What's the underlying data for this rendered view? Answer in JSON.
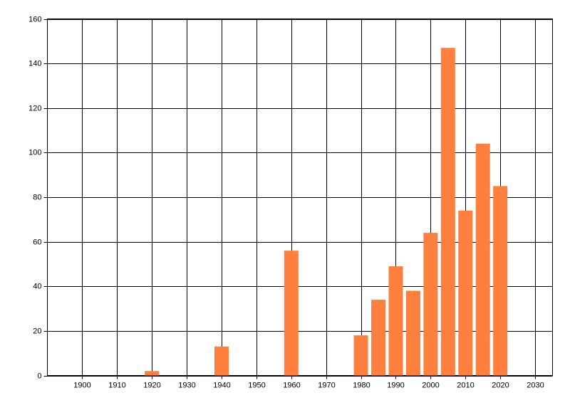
{
  "chart_data": {
    "type": "bar",
    "x": [
      1920,
      1940,
      1960,
      1980,
      1985,
      1990,
      1995,
      2000,
      2005,
      2010,
      2015,
      2020
    ],
    "values": [
      2,
      13,
      56,
      18,
      34,
      49,
      38,
      64,
      147,
      74,
      104,
      85
    ],
    "color": "#ff7f3f",
    "xlim": [
      1890,
      2035
    ],
    "xticks": [
      1900,
      1910,
      1920,
      1930,
      1940,
      1950,
      1960,
      1970,
      1980,
      1990,
      2000,
      2010,
      2020,
      2030
    ],
    "ylim": [
      0,
      160
    ],
    "yticks": [
      0,
      20,
      40,
      60,
      80,
      100,
      120,
      140,
      160
    ],
    "grid": true
  }
}
